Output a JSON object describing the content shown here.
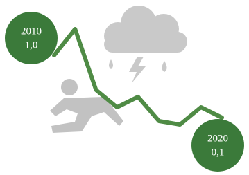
{
  "chart_data": {
    "type": "line",
    "categories": [
      "2010",
      null,
      null,
      null,
      null,
      null,
      null,
      null,
      "2020"
    ],
    "values": [
      1.0,
      1.38,
      0.5,
      0.25,
      0.4,
      0.05,
      0.0,
      0.25,
      0.1
    ],
    "value_labels": [
      "1,0",
      null,
      null,
      null,
      null,
      null,
      null,
      null,
      "0,1"
    ],
    "color": "#4f8b45",
    "marker_color": "#3b7a3a",
    "ylim": [
      -0.1,
      1.5
    ]
  }
}
